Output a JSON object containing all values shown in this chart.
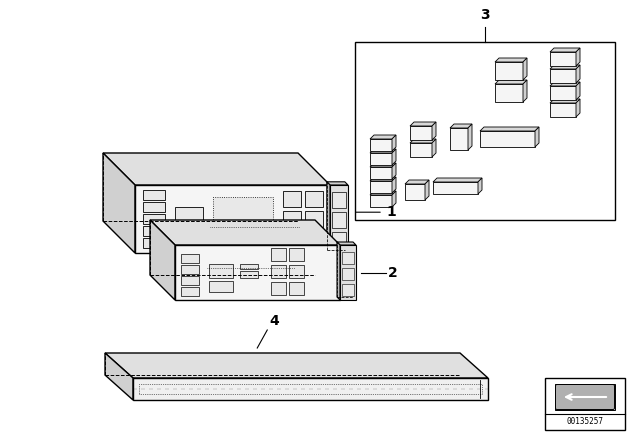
{
  "bg_color": "#ffffff",
  "line_color": "#000000",
  "part_number": "00135257",
  "label_fontsize": 10,
  "figsize": [
    6.4,
    4.48
  ],
  "dpi": 100,
  "face_color": "#f5f5f5",
  "top_color": "#e0e0e0",
  "side_color": "#d0d0d0",
  "button_color": "#e8e8e8",
  "dark_color": "#555555"
}
